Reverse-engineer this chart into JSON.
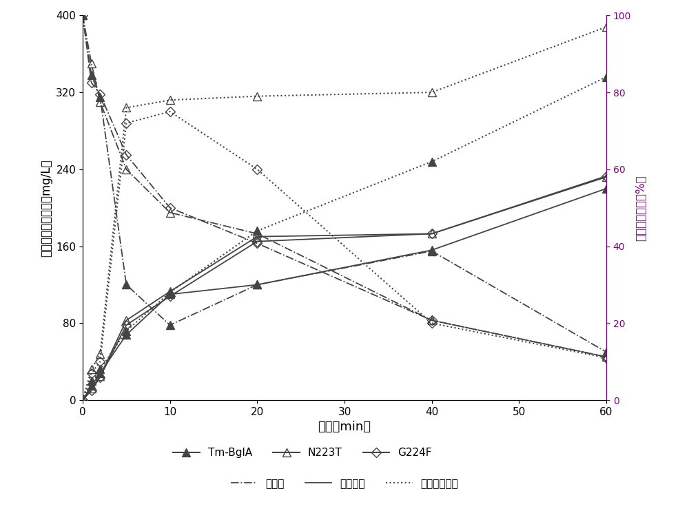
{
  "time": [
    0,
    1,
    2,
    5,
    10,
    20,
    40,
    60
  ],
  "TmBglA_polydatin": [
    400,
    338,
    315,
    120,
    78,
    120,
    155,
    50
  ],
  "N223T_polydatin": [
    400,
    350,
    310,
    240,
    195,
    173,
    83,
    45
  ],
  "G224F_polydatin": [
    400,
    330,
    318,
    255,
    200,
    163,
    83,
    45
  ],
  "TmBglA_resveratrol": [
    0,
    15,
    28,
    68,
    110,
    120,
    156,
    220
  ],
  "N223T_resveratrol": [
    0,
    12,
    25,
    83,
    113,
    170,
    173,
    232
  ],
  "G224F_resveratrol": [
    0,
    10,
    24,
    78,
    108,
    165,
    173,
    233
  ],
  "TmBglA_conversion_pct": [
    0,
    5,
    8,
    18,
    28,
    44,
    62,
    84
  ],
  "N223T_conversion_pct": [
    0,
    8,
    12,
    76,
    78,
    79,
    80,
    97
  ],
  "G224F_conversion_pct": [
    0,
    7,
    10,
    72,
    75,
    60,
    20,
    11
  ],
  "ylabel_left": "虎杖苷及白藜詆醒（mg/L）",
  "ylabel_right": "虎杖苷转化率（%）",
  "xlabel": "时间（min）",
  "legend1_labels": [
    "Tm-BglA",
    "N223T",
    "G224F"
  ],
  "legend2_labels": [
    "虎杖苷",
    "白藜詆醒",
    "虎杖苷转化率"
  ],
  "line_color": "#444444",
  "bg_color": "#ffffff",
  "ylim_left": [
    0,
    400
  ],
  "ylim_right": [
    0,
    100
  ],
  "xlim": [
    0,
    60
  ],
  "xticks": [
    0,
    10,
    20,
    30,
    40,
    50,
    60
  ],
  "yticks_left": [
    0,
    80,
    160,
    240,
    320,
    400
  ],
  "yticks_right": [
    0,
    20,
    40,
    60,
    80,
    100
  ]
}
